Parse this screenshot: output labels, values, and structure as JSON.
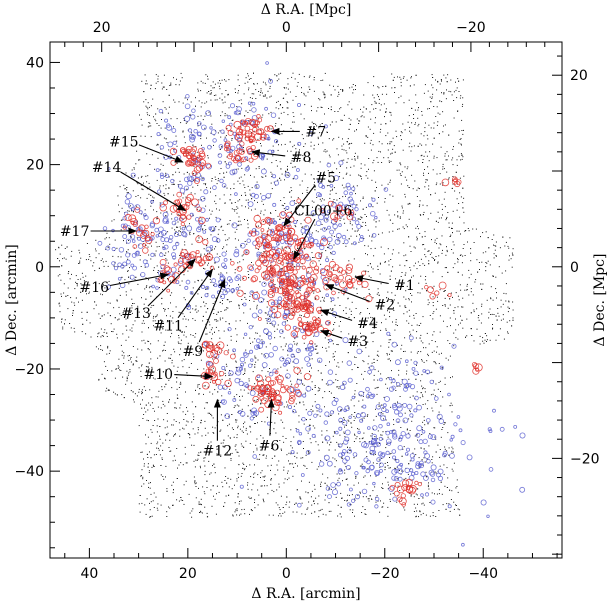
{
  "chart_data": {
    "type": "scatter",
    "title": "",
    "xlabel_bottom": "Δ R.A. [arcmin]",
    "xlabel_top": "Δ R.A. [Mpc]",
    "ylabel_left": "Δ Dec. [arcmin]",
    "ylabel_right": "Δ Dec. [Mpc]",
    "x_arcmin_range": [
      48,
      -56
    ],
    "y_arcmin_range": [
      -57,
      44
    ],
    "x_ticks_arcmin": [
      40,
      20,
      0,
      -20,
      -40
    ],
    "x_tick_labels_arcmin": [
      "40",
      "20",
      "0",
      "−20",
      "−40"
    ],
    "y_ticks_arcmin": [
      40,
      20,
      0,
      -20,
      -40
    ],
    "y_tick_labels_arcmin": [
      "40",
      "20",
      "0",
      "−20",
      "−40"
    ],
    "x_ticks_mpc_arcmin_positions": [
      37.5,
      0,
      -37.5
    ],
    "x_tick_labels_mpc": [
      "20",
      "0",
      "−20"
    ],
    "y_ticks_mpc_arcmin_positions": [
      37.5,
      0,
      -37.5
    ],
    "y_tick_labels_mpc": [
      "20",
      "0",
      "−20"
    ],
    "grid": false,
    "field_boundary_arcmin": [
      [
        30,
        38
      ],
      [
        -36,
        38
      ],
      [
        -36,
        8
      ],
      [
        -46,
        6
      ],
      [
        -46,
        -14
      ],
      [
        -34,
        -16
      ],
      [
        -34,
        -37
      ],
      [
        -36,
        -49
      ],
      [
        30,
        -49
      ],
      [
        30,
        -27
      ],
      [
        38,
        -24
      ],
      [
        39,
        -14
      ],
      [
        46,
        -12
      ],
      [
        47,
        4
      ],
      [
        36,
        7
      ],
      [
        34,
        16
      ],
      [
        30,
        24
      ]
    ],
    "cluster_labels": [
      {
        "label": "CL00+6",
        "x": -7.5,
        "y": 11,
        "arrow_to": [
          -1.5,
          1.5
        ]
      },
      {
        "label": "#1",
        "x": -24,
        "y": -3.6,
        "arrow_to": [
          -14,
          -2
        ]
      },
      {
        "label": "#2",
        "x": -20,
        "y": -7.4,
        "arrow_to": [
          -8,
          -3.5
        ]
      },
      {
        "label": "#3",
        "x": -14.5,
        "y": -14.5,
        "arrow_to": [
          -7,
          -12.5
        ]
      },
      {
        "label": "#4",
        "x": -16.5,
        "y": -11,
        "arrow_to": [
          -7,
          -8.5
        ]
      },
      {
        "label": "#5",
        "x": -8,
        "y": 17.5,
        "arrow_to": [
          0.5,
          8
        ]
      },
      {
        "label": "#6",
        "x": 3.5,
        "y": -35,
        "arrow_to": [
          3,
          -26
        ]
      },
      {
        "label": "#7",
        "x": -6,
        "y": 26.5,
        "arrow_to": [
          3,
          26.5
        ]
      },
      {
        "label": "#8",
        "x": -3,
        "y": 21.5,
        "arrow_to": [
          7,
          22.5
        ]
      },
      {
        "label": "#9",
        "x": 19,
        "y": -16.5,
        "arrow_to": [
          12.5,
          -2.5
        ]
      },
      {
        "label": "#10",
        "x": 26,
        "y": -21,
        "arrow_to": [
          15,
          -21.5
        ]
      },
      {
        "label": "#11",
        "x": 24,
        "y": -11.5,
        "arrow_to": [
          15,
          -0.5
        ]
      },
      {
        "label": "#12",
        "x": 14,
        "y": -36,
        "arrow_to": [
          14,
          -26
        ]
      },
      {
        "label": "#13",
        "x": 30.5,
        "y": -9,
        "arrow_to": [
          18.5,
          1.5
        ]
      },
      {
        "label": "#14",
        "x": 36.5,
        "y": 19.5,
        "arrow_to": [
          20.5,
          11
        ]
      },
      {
        "label": "#15",
        "x": 33,
        "y": 24.5,
        "arrow_to": [
          21,
          20.5
        ]
      },
      {
        "label": "#16",
        "x": 39,
        "y": -4,
        "arrow_to": [
          24,
          -1.5
        ]
      },
      {
        "label": "#17",
        "x": 43,
        "y": 7,
        "arrow_to": [
          30.5,
          7
        ]
      }
    ],
    "red_concentrations_arcmin": [
      {
        "x": 0,
        "y": 0,
        "sx": 3.5,
        "sy": 4.5,
        "n": 140
      },
      {
        "x": 3,
        "y": 5,
        "sx": 2.5,
        "sy": 2.5,
        "n": 40
      },
      {
        "x": -2.5,
        "y": -8,
        "sx": 2.2,
        "sy": 1.8,
        "n": 55
      },
      {
        "x": -5,
        "y": -12.5,
        "sx": 1.5,
        "sy": 1.0,
        "n": 25
      },
      {
        "x": -12,
        "y": -2,
        "sx": 2.5,
        "sy": 1.5,
        "n": 30
      },
      {
        "x": 3,
        "y": -24.5,
        "sx": 2.5,
        "sy": 1.5,
        "n": 55
      },
      {
        "x": 7,
        "y": 26.5,
        "sx": 2.0,
        "sy": 1.5,
        "n": 35
      },
      {
        "x": 9,
        "y": 22.5,
        "sx": 2.0,
        "sy": 1.5,
        "n": 25
      },
      {
        "x": 19,
        "y": 21,
        "sx": 2.0,
        "sy": 1.5,
        "n": 35
      },
      {
        "x": 21,
        "y": 11.5,
        "sx": 1.8,
        "sy": 1.5,
        "n": 25
      },
      {
        "x": 30,
        "y": 7,
        "sx": 1.5,
        "sy": 1.5,
        "n": 20
      },
      {
        "x": 18.5,
        "y": 2,
        "sx": 2.0,
        "sy": 1.5,
        "n": 25
      },
      {
        "x": 14,
        "y": -21,
        "sx": 1.5,
        "sy": 1.5,
        "n": 15
      },
      {
        "x": 14,
        "y": -16,
        "sx": 1.3,
        "sy": 1.2,
        "n": 12
      },
      {
        "x": -24,
        "y": -44,
        "sx": 1.3,
        "sy": 1.3,
        "n": 18
      },
      {
        "x": 24,
        "y": -1.5,
        "sx": 1.5,
        "sy": 1.3,
        "n": 12
      },
      {
        "x": -11,
        "y": 11,
        "sx": 1.5,
        "sy": 1.5,
        "n": 12
      },
      {
        "x": -34,
        "y": 17,
        "sx": 0.7,
        "sy": 0.7,
        "n": 6
      },
      {
        "x": -31,
        "y": -4.5,
        "sx": 1.0,
        "sy": 1.0,
        "n": 6
      },
      {
        "x": -39,
        "y": -19.5,
        "sx": 0.8,
        "sy": 0.8,
        "n": 5
      }
    ],
    "blue_concentrations_arcmin": [
      {
        "x": -20,
        "y": -33,
        "sx": 10,
        "sy": 8,
        "n": 260
      },
      {
        "x": 0,
        "y": 0,
        "sx": 6,
        "sy": 8,
        "n": 140
      },
      {
        "x": 12.5,
        "y": -2.5,
        "sx": 1.5,
        "sy": 2.0,
        "n": 25
      },
      {
        "x": 22,
        "y": 8,
        "sx": 6,
        "sy": 8,
        "n": 120
      },
      {
        "x": 12,
        "y": 24,
        "sx": 8,
        "sy": 5,
        "n": 100
      },
      {
        "x": -10,
        "y": 10,
        "sx": 5,
        "sy": 5,
        "n": 60
      },
      {
        "x": 6,
        "y": -20,
        "sx": 6,
        "sy": 6,
        "n": 80
      },
      {
        "x": 30,
        "y": 5,
        "sx": 3,
        "sy": 4,
        "n": 40
      }
    ],
    "field_dot_count": 5200,
    "colors": {
      "red": "#e0302a",
      "blue": "#5b5fd0",
      "dots": "#1a1a1a",
      "axis": "#000000"
    }
  }
}
